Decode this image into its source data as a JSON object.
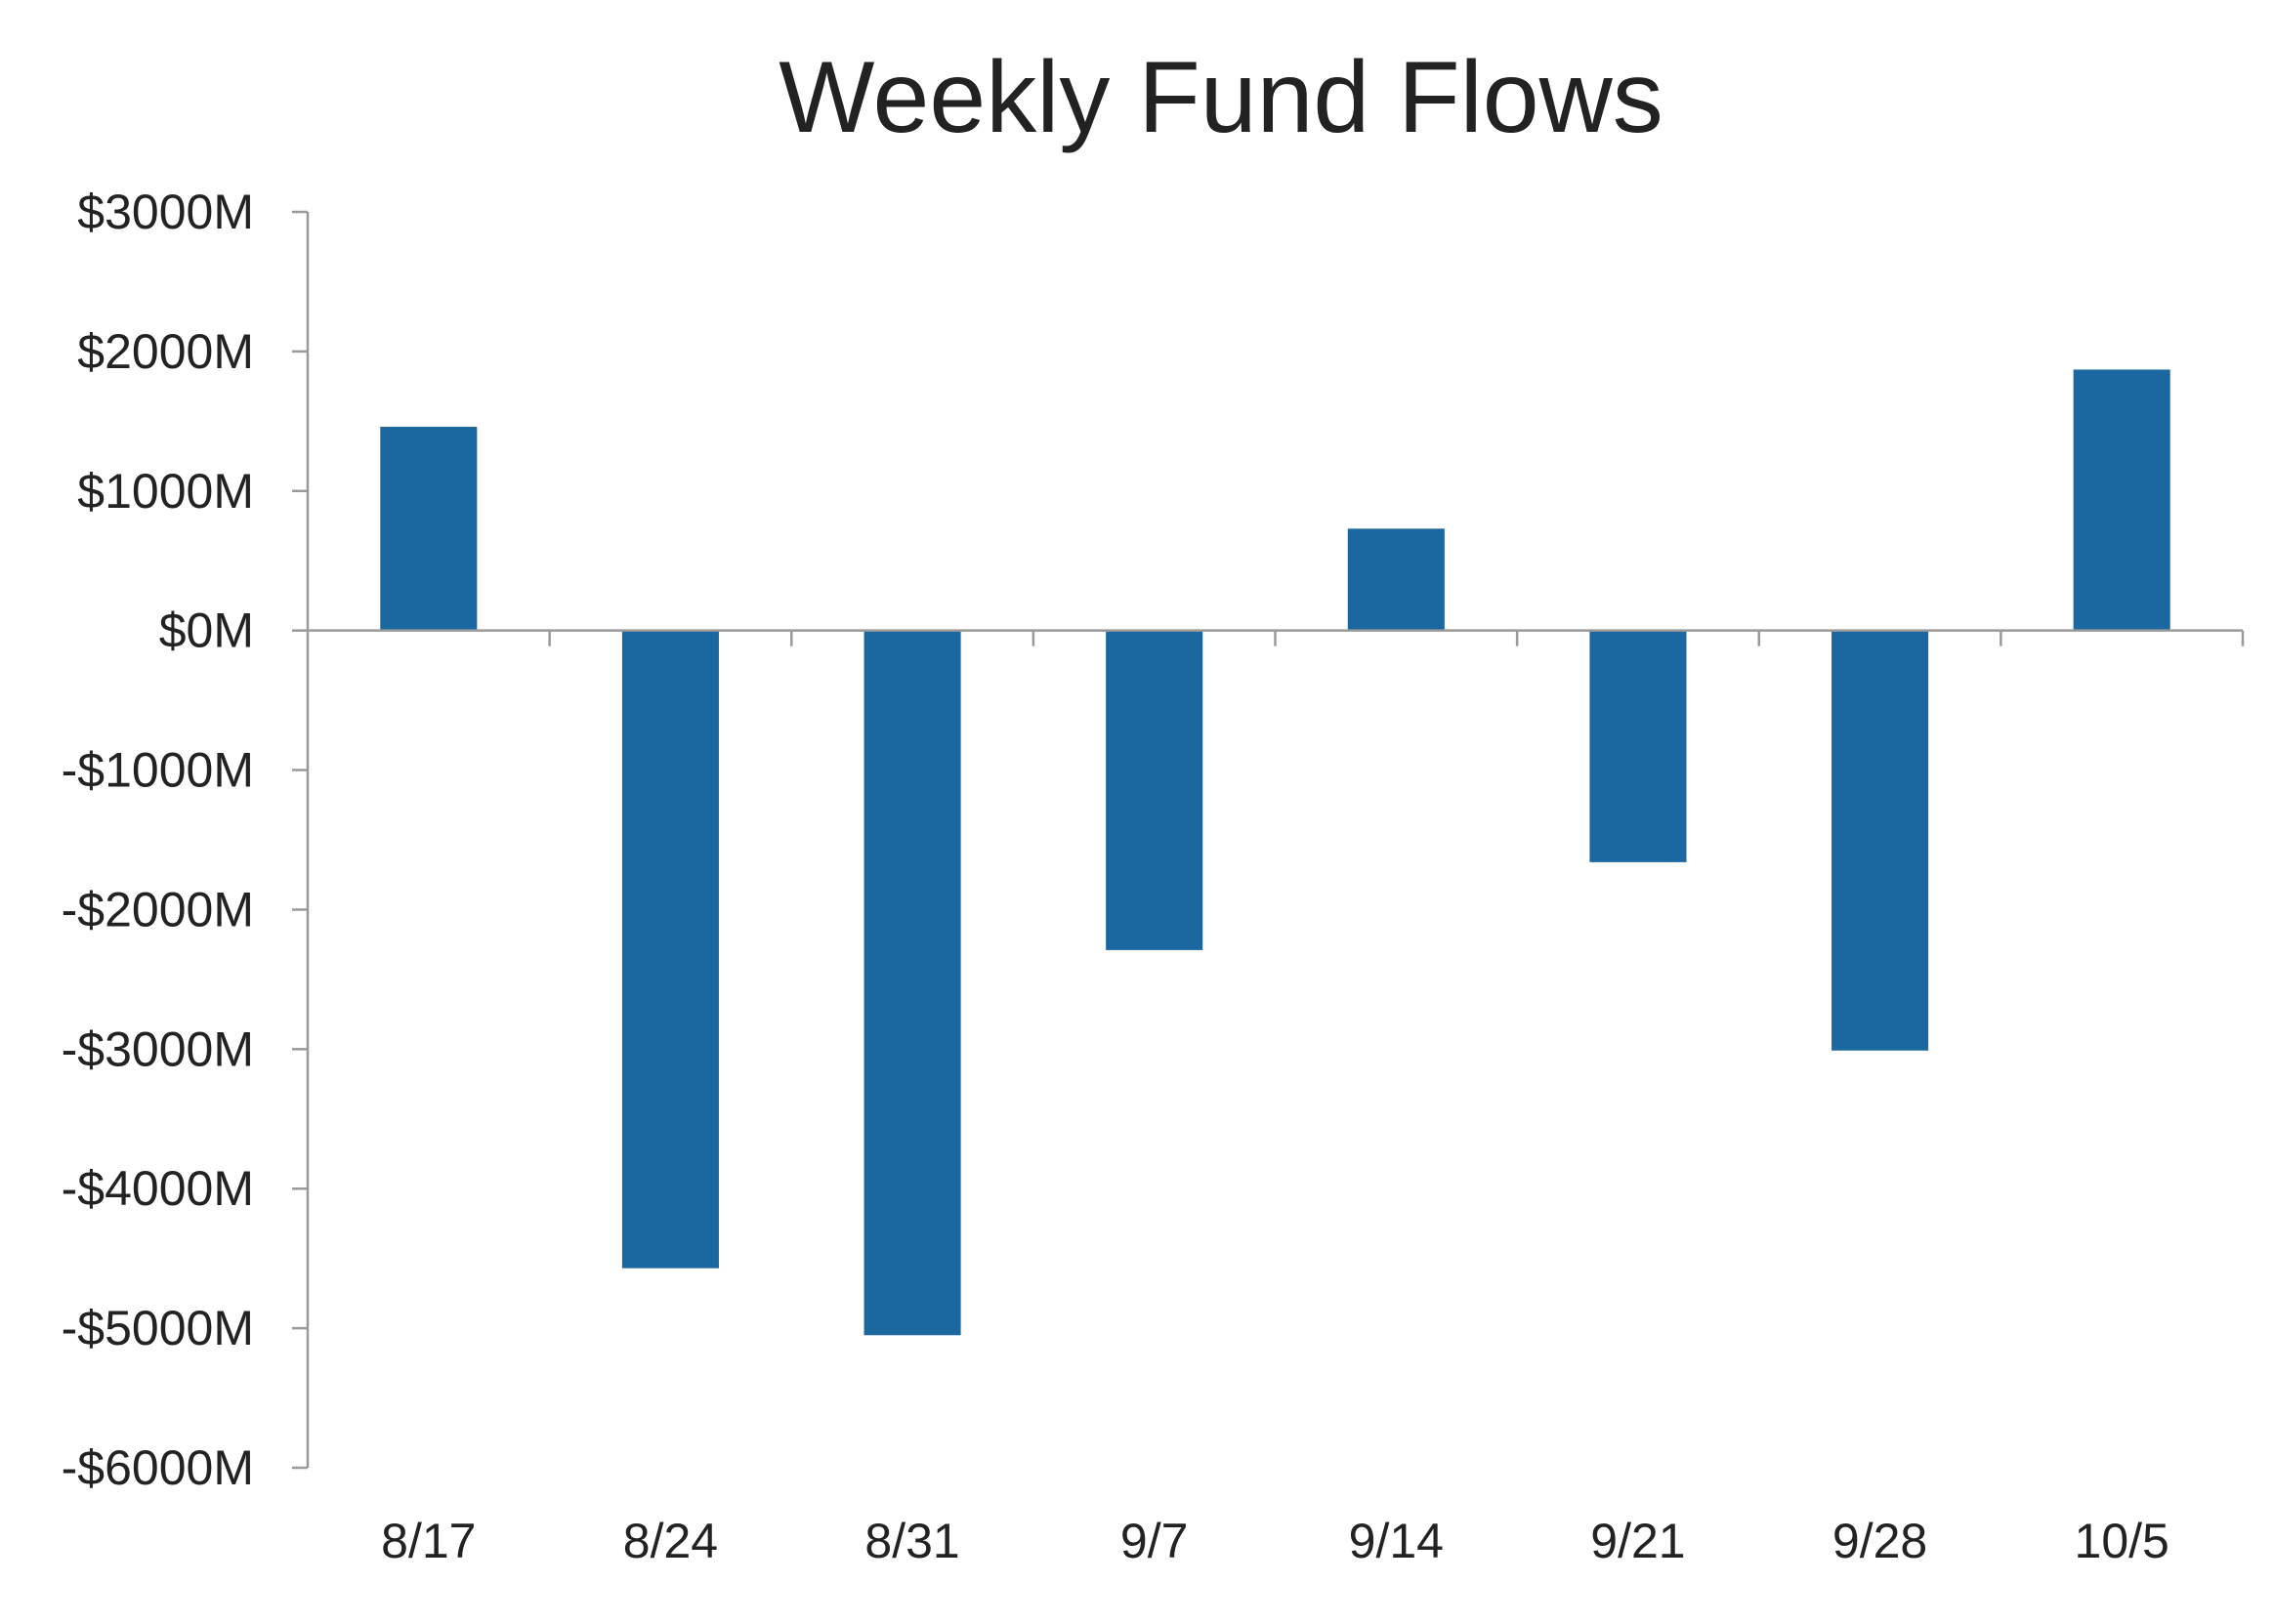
{
  "chart_data": {
    "type": "bar",
    "title": "Weekly Fund Flows",
    "xlabel": "",
    "ylabel": "",
    "categories": [
      "8/17",
      "8/24",
      "8/31",
      "9/7",
      "9/14",
      "9/21",
      "9/28",
      "10/5"
    ],
    "values": [
      1460,
      -4570,
      -5050,
      -2290,
      730,
      -1660,
      -3010,
      1870
    ],
    "unit_prefix": "$",
    "unit_suffix": "M",
    "ylim": [
      -6000,
      3000
    ],
    "y_ticks": [
      3000,
      2000,
      1000,
      0,
      -1000,
      -2000,
      -3000,
      -4000,
      -5000,
      -6000
    ],
    "y_tick_labels": [
      "$3000M",
      "$2000M",
      "$1000M",
      "$0M",
      "-$1000M",
      "-$2000M",
      "-$3000M",
      "-$4000M",
      "-$5000M",
      "-$6000M"
    ],
    "bar_color": "#1B67A0",
    "axis_color": "#9a9a9a",
    "grid": false,
    "legend": "none"
  }
}
